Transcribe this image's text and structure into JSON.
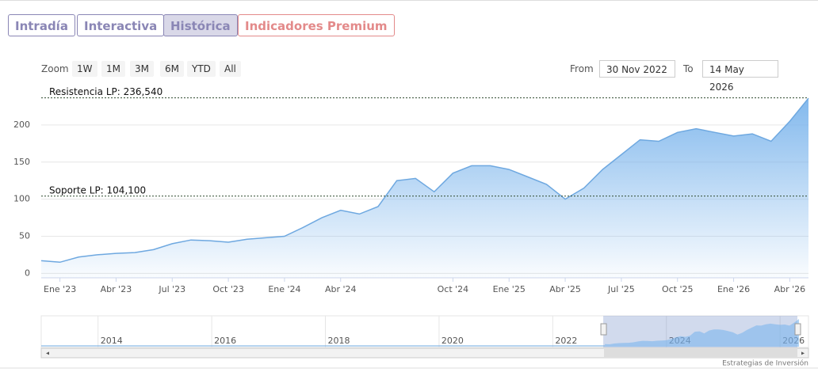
{
  "tabs": [
    "Intradía",
    "Interactiva",
    "Histórica",
    "Indicadores Premium"
  ],
  "zoom": {
    "label": "Zoom",
    "buttons": [
      "1W",
      "1M",
      "3M",
      "6M",
      "YTD",
      "All"
    ]
  },
  "range": {
    "from_label": "From",
    "from": "30 Nov 2022",
    "to_label": "To",
    "to": "14 May 2026"
  },
  "credit": "Estrategias de Inversión",
  "chart_data": {
    "type": "area",
    "x": [
      "2022-12",
      "2023-01",
      "2023-02",
      "2023-03",
      "2023-04",
      "2023-05",
      "2023-06",
      "2023-07",
      "2023-08",
      "2023-09",
      "2023-10",
      "2023-11",
      "2023-12",
      "2024-01",
      "2024-02",
      "2024-03",
      "2024-04",
      "2024-05",
      "2024-06",
      "2024-07",
      "2024-08",
      "2024-09",
      "2024-10",
      "2024-11",
      "2024-12",
      "2025-01",
      "2025-02",
      "2025-03",
      "2025-04",
      "2025-05",
      "2025-06",
      "2025-07",
      "2025-08",
      "2025-09",
      "2025-10",
      "2025-11",
      "2025-12",
      "2026-01",
      "2026-02",
      "2026-03",
      "2026-04",
      "2026-05"
    ],
    "values": [
      17,
      15,
      22,
      25,
      27,
      28,
      32,
      40,
      45,
      44,
      42,
      46,
      48,
      50,
      62,
      75,
      85,
      80,
      90,
      125,
      128,
      110,
      135,
      145,
      145,
      140,
      130,
      120,
      100,
      115,
      140,
      160,
      180,
      178,
      190,
      195,
      190,
      185,
      188,
      178,
      205,
      236
    ],
    "color": "#6ea8e0",
    "xlim": [
      "2022-12",
      "2026-05"
    ],
    "xticks": [
      {
        "value": "2023-01",
        "label": "Ene '23"
      },
      {
        "value": "2023-04",
        "label": "Abr '23"
      },
      {
        "value": "2023-07",
        "label": "Jul '23"
      },
      {
        "value": "2023-10",
        "label": "Oct '23"
      },
      {
        "value": "2024-01",
        "label": "Ene '24"
      },
      {
        "value": "2024-04",
        "label": "Abr '24"
      },
      {
        "value": "2024-10",
        "label": "Oct '24"
      },
      {
        "value": "2025-01",
        "label": "Ene '25"
      },
      {
        "value": "2025-04",
        "label": "Abr '25"
      },
      {
        "value": "2025-07",
        "label": "Jul '25"
      },
      {
        "value": "2025-10",
        "label": "Oct '25"
      },
      {
        "value": "2026-01",
        "label": "Ene '26"
      },
      {
        "value": "2026-04",
        "label": "Abr '26"
      }
    ],
    "ylim": [
      -6,
      250
    ],
    "yticks": [
      0,
      50,
      100,
      150,
      200
    ],
    "grid": true,
    "plot_lines": [
      {
        "label": "Resistencia LP: 236,540",
        "value": 236.54
      },
      {
        "label": "Soporte LP: 104,100",
        "value": 104.1
      }
    ],
    "navigator": {
      "xlim": [
        2013,
        2026.5
      ],
      "xticks": [
        2014,
        2016,
        2018,
        2020,
        2022,
        2024,
        2026
      ]
    }
  }
}
